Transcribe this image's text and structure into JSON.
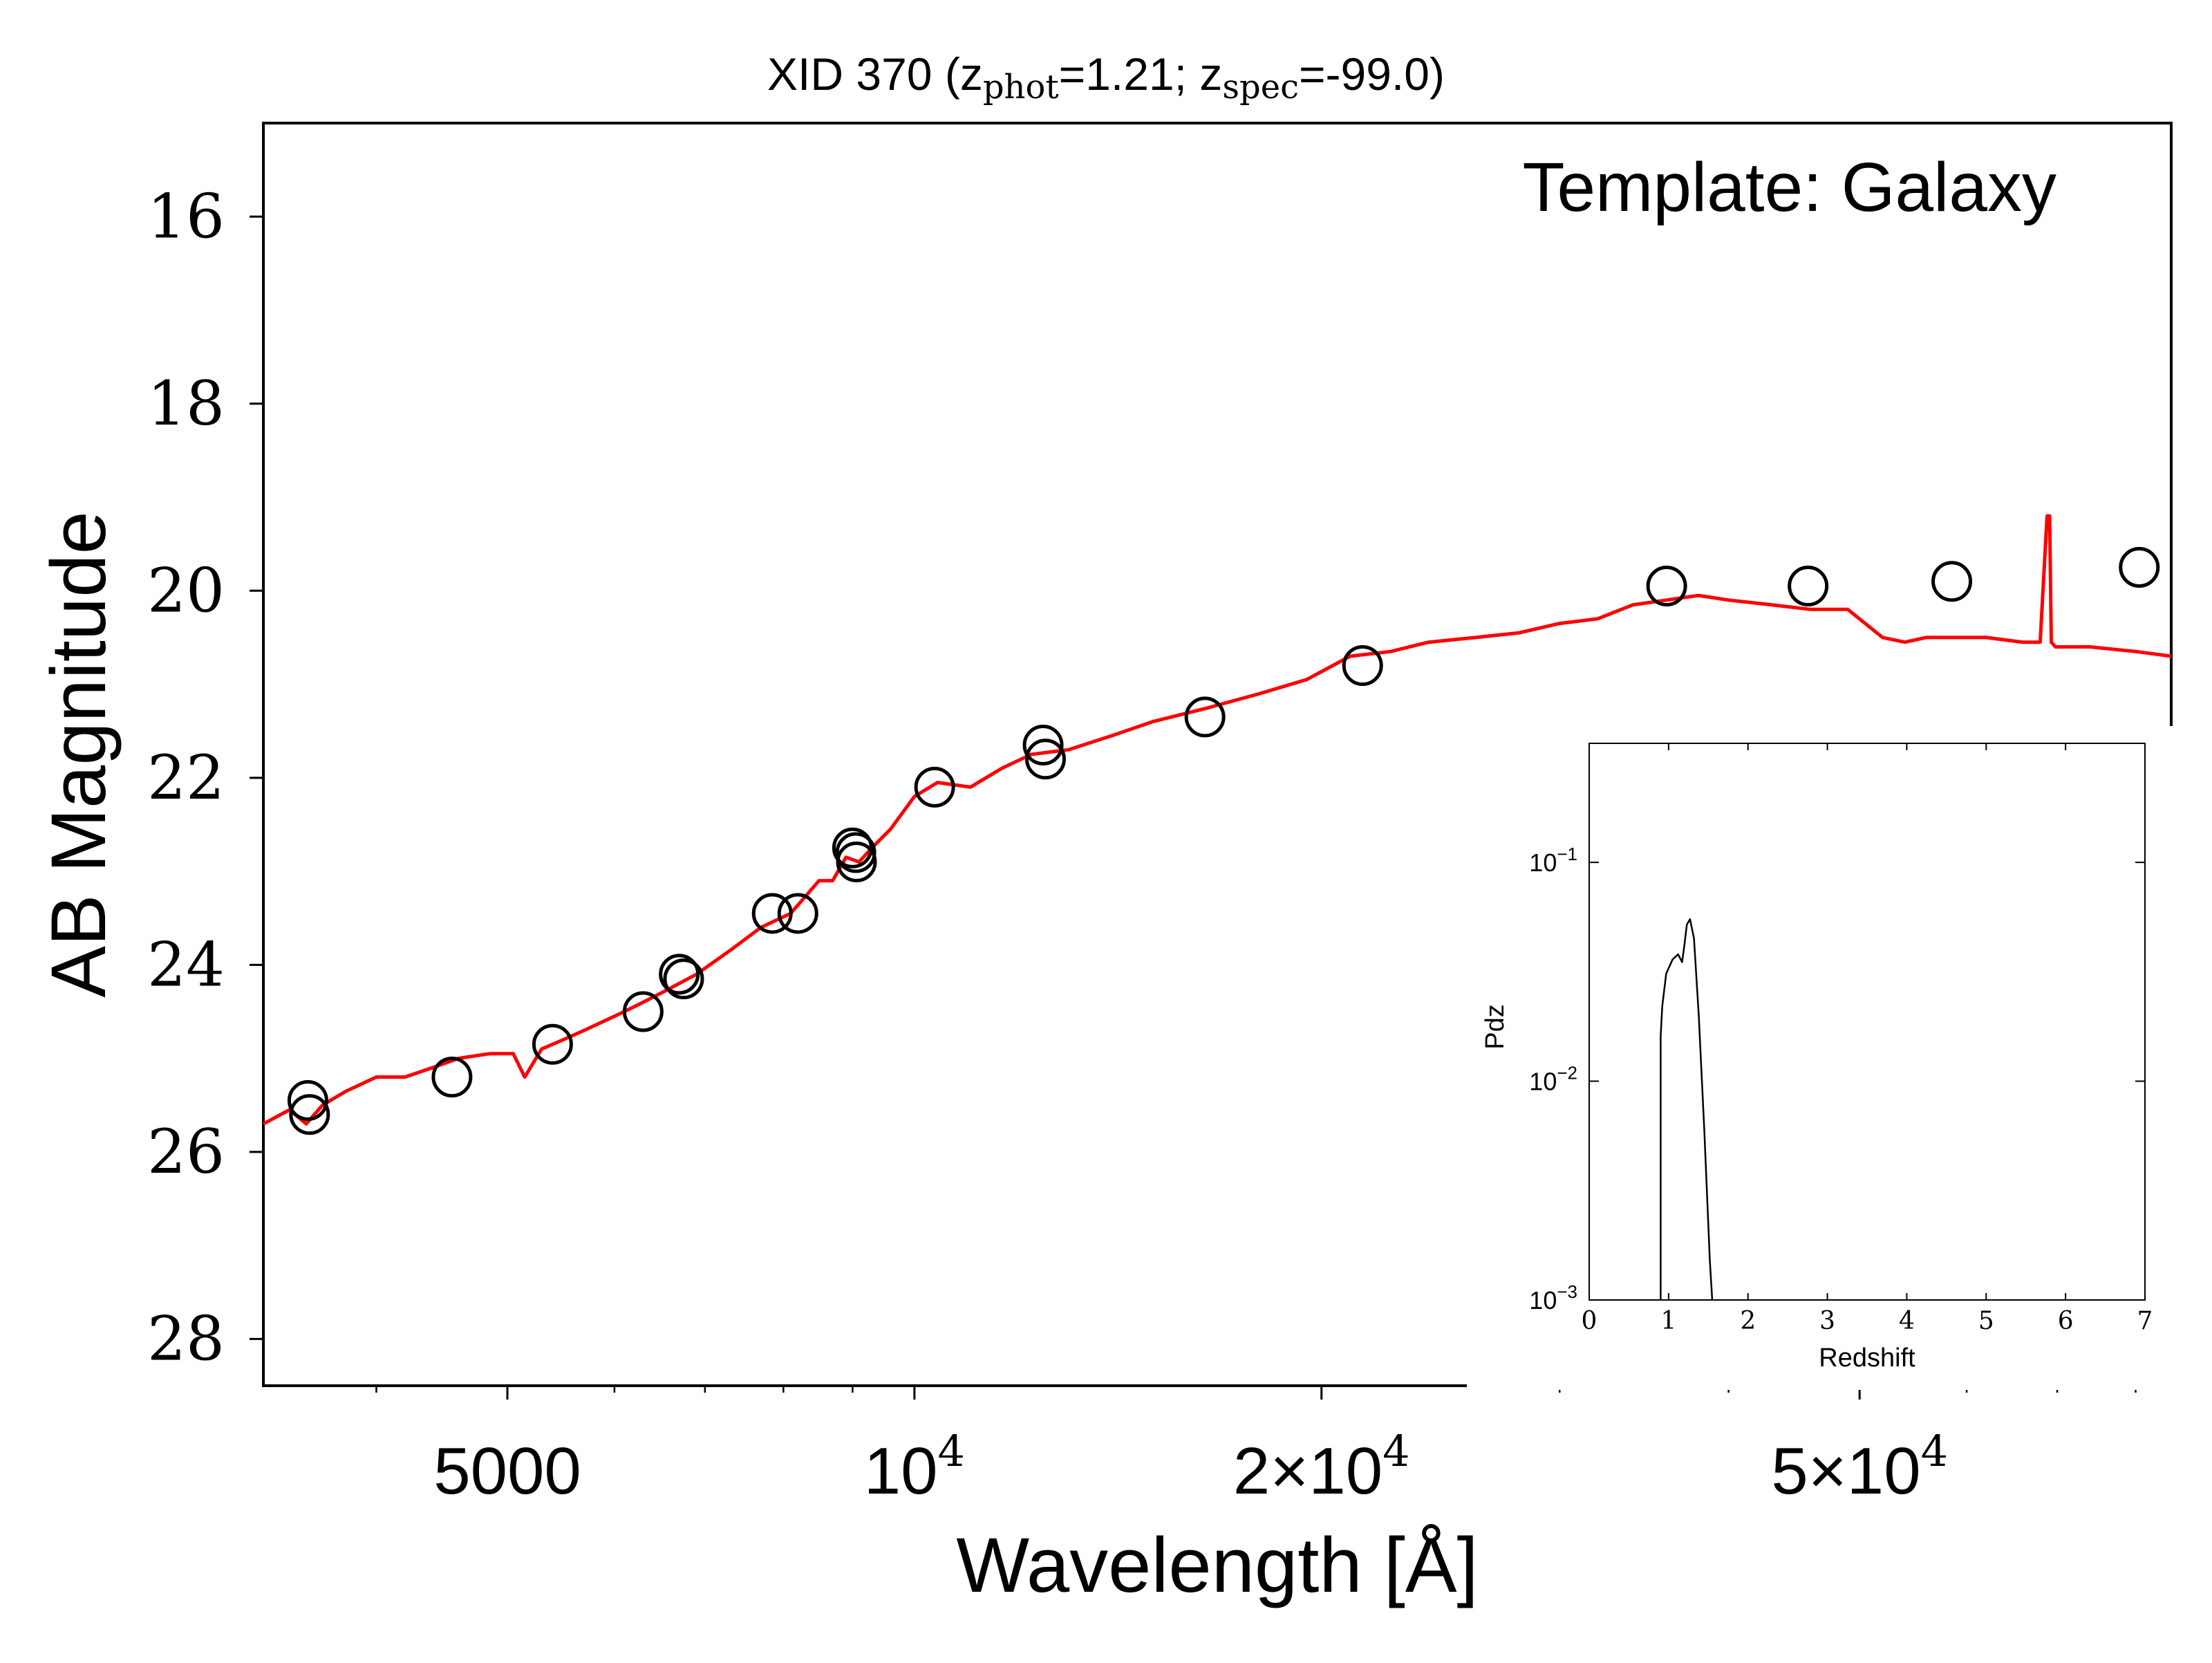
{
  "chart_data": {
    "type": "scatter",
    "title": {
      "prefix": "XID 370 (z",
      "sub1": "phot",
      "mid": "=1.21; z",
      "sub2": "spec",
      "suffix": "=-99.0)"
    },
    "xlabel": "Wavelength [Å]",
    "ylabel": "AB Magnitude",
    "annotation": "Template: Galaxy",
    "x_scale": "log",
    "xlim": [
      3300,
      85000
    ],
    "ylim": [
      28.5,
      15.0
    ],
    "y_inverted": true,
    "colors": {
      "template": "#ff0000",
      "points": "#000000"
    },
    "xticks": [
      {
        "value": 5000,
        "label": "5000",
        "kind": "plain"
      },
      {
        "value": 10000,
        "label": "10",
        "exp": "4",
        "kind": "pow"
      },
      {
        "value": 20000,
        "label": "2×10",
        "exp": "4",
        "kind": "pow"
      },
      {
        "value": 50000,
        "label": "5×10",
        "exp": "4",
        "kind": "pow"
      }
    ],
    "yticks": [
      {
        "value": 16,
        "label": "16"
      },
      {
        "value": 18,
        "label": "18"
      },
      {
        "value": 20,
        "label": "20"
      },
      {
        "value": 22,
        "label": "22"
      },
      {
        "value": 24,
        "label": "24"
      },
      {
        "value": 26,
        "label": "26"
      },
      {
        "value": 28,
        "label": "28"
      }
    ],
    "series": [
      {
        "kind": "points",
        "x": [
          3560,
          3570,
          4550,
          5400,
          6300,
          6700,
          6750,
          7850,
          8200,
          9000,
          9050,
          9060,
          10350,
          12450,
          12500,
          16400,
          21450,
          36000,
          45800,
          58500,
          80500
        ],
        "y": [
          25.45,
          25.6,
          25.2,
          24.85,
          24.5,
          24.1,
          24.15,
          23.45,
          23.45,
          22.75,
          22.8,
          22.9,
          22.1,
          21.65,
          21.8,
          21.35,
          20.8,
          19.95,
          19.95,
          19.9,
          19.75
        ]
      },
      {
        "kind": "template",
        "x": [
          3300,
          3450,
          3550,
          3650,
          3800,
          4000,
          4200,
          4400,
          4600,
          4850,
          5050,
          5150,
          5300,
          5500,
          5700,
          6000,
          6200,
          6500,
          6900,
          7300,
          7700,
          8100,
          8500,
          8700,
          8900,
          9100,
          9300,
          9600,
          10000,
          10400,
          11000,
          11600,
          12200,
          13000,
          14000,
          15000,
          16500,
          18000,
          19500,
          21000,
          22500,
          24000,
          26000,
          28000,
          30000,
          32000,
          34000,
          36000,
          38000,
          40000,
          43000,
          46000,
          49000,
          52000,
          54000,
          56000,
          58000,
          62000,
          66000,
          68000,
          68800,
          69100,
          69300,
          69800,
          74000,
          80000,
          85000
        ],
        "y": [
          25.7,
          25.55,
          25.7,
          25.5,
          25.35,
          25.2,
          25.2,
          25.1,
          25.0,
          24.95,
          24.95,
          25.2,
          24.9,
          24.8,
          24.7,
          24.55,
          24.45,
          24.3,
          24.1,
          23.85,
          23.6,
          23.45,
          23.1,
          23.1,
          22.85,
          22.9,
          22.75,
          22.55,
          22.2,
          22.05,
          22.1,
          21.9,
          21.75,
          21.7,
          21.55,
          21.4,
          21.25,
          21.1,
          20.95,
          20.7,
          20.65,
          20.55,
          20.5,
          20.45,
          20.35,
          20.3,
          20.15,
          20.1,
          20.05,
          20.1,
          20.15,
          20.2,
          20.2,
          20.5,
          20.55,
          20.5,
          20.5,
          20.5,
          20.55,
          20.55,
          19.2,
          19.2,
          20.55,
          20.6,
          20.6,
          20.65,
          20.7
        ]
      }
    ],
    "inset": {
      "type": "line",
      "xlabel": "Redshift",
      "ylabel": "Pdz",
      "y_scale": "log",
      "xlim": [
        0,
        7
      ],
      "ylim": [
        0.001,
        0.35
      ],
      "xticks": [
        "0",
        "1",
        "2",
        "3",
        "4",
        "5",
        "6",
        "7"
      ],
      "yticks": [
        {
          "value": 0.1,
          "base": "10",
          "exp": "−1"
        },
        {
          "value": 0.01,
          "base": "10",
          "exp": "−2"
        },
        {
          "value": 0.001,
          "base": "10",
          "exp": "−3"
        }
      ],
      "x": [
        0.9,
        0.9,
        0.92,
        0.97,
        1.05,
        1.12,
        1.17,
        1.2,
        1.23,
        1.27,
        1.32,
        1.38,
        1.45,
        1.52,
        1.55
      ],
      "y": [
        0.001,
        0.016,
        0.022,
        0.031,
        0.036,
        0.038,
        0.035,
        0.042,
        0.052,
        0.055,
        0.045,
        0.02,
        0.006,
        0.0015,
        0.001
      ]
    }
  }
}
